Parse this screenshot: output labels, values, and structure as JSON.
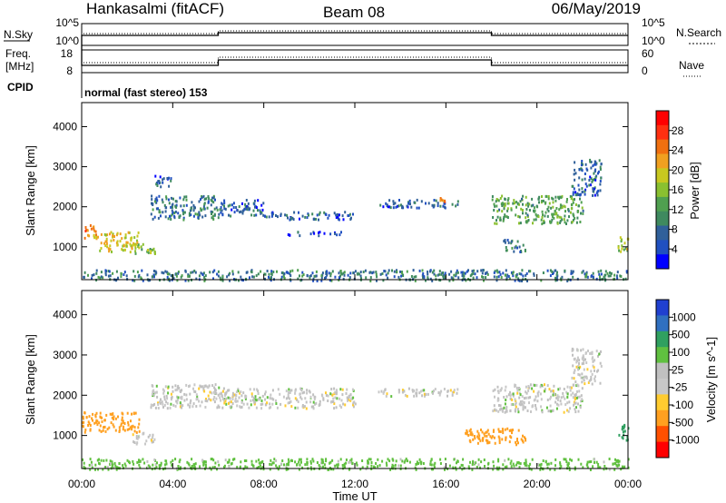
{
  "header": {
    "station": "Hankasalmi (fitACF)",
    "beam": "Beam 08",
    "date": "06/May/2019"
  },
  "noise_panel": {
    "left_label": "N.Sky",
    "left_ticks": [
      "10^5",
      "10^0"
    ],
    "right_label": "N.Search",
    "right_ticks": [
      "10^5",
      "10^0"
    ]
  },
  "freq_panel": {
    "left_label_1": "Freq.",
    "left_label_2": "[MHz]",
    "left_ticks": [
      "18",
      "8"
    ],
    "right_label": "Nave",
    "right_ticks": [
      "60",
      "0"
    ]
  },
  "cpid": {
    "label": "CPID",
    "value": "normal (fast stereo) 153"
  },
  "x_axis": {
    "label": "Time UT",
    "ticks": [
      "00:00",
      "04:00",
      "08:00",
      "12:00",
      "16:00",
      "20:00",
      "00:00"
    ]
  },
  "colors": {
    "power_scale": [
      "#0000ff",
      "#2050c0",
      "#30609a",
      "#3f8a5f",
      "#50a050",
      "#8ac030",
      "#c8c820",
      "#f0a020",
      "#f07010",
      "#ff3010",
      "#ff0000"
    ],
    "velocity_scale": [
      "#ff0000",
      "#ff5000",
      "#ffa020",
      "#ffcc30",
      "#c8c8c8",
      "#c0c0c0",
      "#60c040",
      "#30a060",
      "#3070c0",
      "#2040d0"
    ]
  },
  "chart_data": [
    {
      "type": "heatmap",
      "title": "",
      "quantity": "Power",
      "ylabel": "Slant Range [km]",
      "xlabel": "",
      "xlim": [
        0,
        24
      ],
      "ylim": [
        180,
        4600
      ],
      "y_ticks": [
        "4000",
        "3000",
        "2000",
        "1000"
      ],
      "colorbar_label": "Power [dB]",
      "colorbar_ticks": [
        "28",
        "24",
        "20",
        "16",
        "12",
        "8",
        "4"
      ],
      "colorbar_range": [
        0,
        30
      ],
      "echo_regions": [
        {
          "t_start": 0.0,
          "t_end": 0.6,
          "range_start": 1200,
          "range_end": 1600,
          "power_db": 22
        },
        {
          "t_start": 0.6,
          "t_end": 2.5,
          "range_start": 900,
          "range_end": 1400,
          "power_db": 18
        },
        {
          "t_start": 2.2,
          "t_end": 3.2,
          "range_start": 800,
          "range_end": 1100,
          "power_db": 14
        },
        {
          "t_start": 3.0,
          "t_end": 6.0,
          "range_start": 1700,
          "range_end": 2300,
          "power_db": 8
        },
        {
          "t_start": 3.2,
          "t_end": 4.0,
          "range_start": 2500,
          "range_end": 2800,
          "power_db": 6
        },
        {
          "t_start": 6.0,
          "t_end": 8.0,
          "range_start": 1800,
          "range_end": 2200,
          "power_db": 6
        },
        {
          "t_start": 8.0,
          "t_end": 12.0,
          "range_start": 1700,
          "range_end": 1900,
          "power_db": 6
        },
        {
          "t_start": 9.0,
          "t_end": 11.5,
          "range_start": 1300,
          "range_end": 1400,
          "power_db": 5
        },
        {
          "t_start": 13.0,
          "t_end": 16.5,
          "range_start": 2000,
          "range_end": 2200,
          "power_db": 6
        },
        {
          "t_start": 15.5,
          "t_end": 16.0,
          "range_start": 2150,
          "range_end": 2250,
          "power_db": 22
        },
        {
          "t_start": 18.0,
          "t_end": 22.0,
          "range_start": 1600,
          "range_end": 2300,
          "power_db": 12
        },
        {
          "t_start": 18.5,
          "t_end": 19.5,
          "range_start": 900,
          "range_end": 1200,
          "power_db": 8
        },
        {
          "t_start": 21.5,
          "t_end": 22.8,
          "range_start": 2300,
          "range_end": 3200,
          "power_db": 6
        },
        {
          "t_start": 23.5,
          "t_end": 24.0,
          "range_start": 900,
          "range_end": 1300,
          "power_db": 16
        },
        {
          "t_start": 0.0,
          "t_end": 24.0,
          "range_start": 180,
          "range_end": 450,
          "power_db": 8
        }
      ]
    },
    {
      "type": "heatmap",
      "title": "",
      "quantity": "Velocity",
      "ylabel": "Slant Range [km]",
      "xlabel": "Time UT",
      "xlim": [
        0,
        24
      ],
      "ylim": [
        180,
        4600
      ],
      "y_ticks": [
        "4000",
        "3000",
        "2000",
        "1000"
      ],
      "colorbar_label": "Velocity [m s^-1]",
      "colorbar_ticks": [
        "1000",
        "500",
        "100",
        "25",
        "-25",
        "-100",
        "-500",
        "-1000"
      ],
      "echo_regions": [
        {
          "t_start": 0.0,
          "t_end": 2.5,
          "range_start": 1100,
          "range_end": 1600,
          "velocity": -300
        },
        {
          "t_start": 2.2,
          "t_end": 3.2,
          "range_start": 800,
          "range_end": 1100,
          "velocity": 0
        },
        {
          "t_start": 3.0,
          "t_end": 6.0,
          "range_start": 1700,
          "range_end": 2300,
          "velocity": 0
        },
        {
          "t_start": 6.0,
          "t_end": 12.0,
          "range_start": 1700,
          "range_end": 2200,
          "velocity": 0
        },
        {
          "t_start": 13.0,
          "t_end": 16.5,
          "range_start": 2000,
          "range_end": 2200,
          "velocity": 0
        },
        {
          "t_start": 18.0,
          "t_end": 22.0,
          "range_start": 1600,
          "range_end": 2300,
          "velocity": 0
        },
        {
          "t_start": 16.8,
          "t_end": 19.5,
          "range_start": 800,
          "range_end": 1200,
          "velocity": -300
        },
        {
          "t_start": 21.5,
          "t_end": 22.8,
          "range_start": 2300,
          "range_end": 3200,
          "velocity": 0
        },
        {
          "t_start": 23.5,
          "t_end": 24.0,
          "range_start": 900,
          "range_end": 1300,
          "velocity": 150
        },
        {
          "t_start": 0.0,
          "t_end": 24.0,
          "range_start": 180,
          "range_end": 450,
          "velocity": 50
        }
      ]
    }
  ]
}
